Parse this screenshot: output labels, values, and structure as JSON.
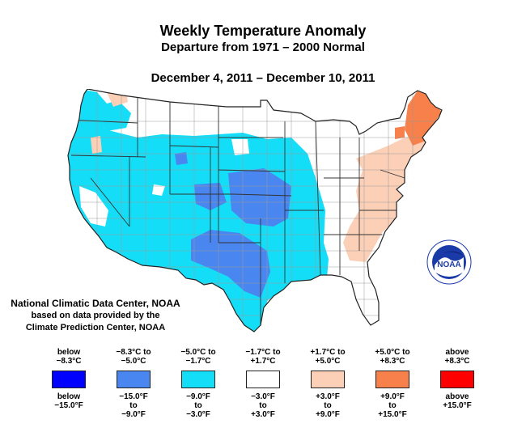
{
  "title": "Weekly Temperature Anomaly",
  "subtitle": "Departure from 1971 – 2000 Normal",
  "date_range": "December 4, 2011 – December 10, 2011",
  "credit": {
    "line1": "National Climatic Data Center, NOAA",
    "line2": "based on data provided by the",
    "line3": "Climate Prediction Center, NOAA"
  },
  "logo": {
    "text": "NOAA",
    "icon": "noaa-logo"
  },
  "colors": {
    "much_below": "#0000ff",
    "below": "#4a86f0",
    "slightly_below": "#14def7",
    "near_normal": "#ffffff",
    "slightly_above": "#fcd0b7",
    "above": "#f8804a",
    "much_above": "#ff0000",
    "border": "#333333"
  },
  "legend": [
    {
      "c": "below\n−8.3°C",
      "f": "below\n−15.0°F",
      "color": "#0000ff"
    },
    {
      "c": "−8.3°C to\n−5.0°C",
      "f": "−15.0°F\nto\n−9.0°F",
      "color": "#4a86f0"
    },
    {
      "c": "−5.0°C to\n−1.7°C",
      "f": "−9.0°F\nto\n−3.0°F",
      "color": "#14def7"
    },
    {
      "c": "−1.7°C to\n+1.7°C",
      "f": "−3.0°F\nto\n+3.0°F",
      "color": "#ffffff"
    },
    {
      "c": "+1.7°C to\n+5.0°C",
      "f": "+3.0°F\nto\n+9.0°F",
      "color": "#fcd0b7"
    },
    {
      "c": "+5.0°C to\n+8.3°C",
      "f": "+9.0°F\nto\n+15.0°F",
      "color": "#f8804a"
    },
    {
      "c": "above\n+8.3°C",
      "f": "above\n+15.0°F",
      "color": "#ff0000"
    }
  ]
}
